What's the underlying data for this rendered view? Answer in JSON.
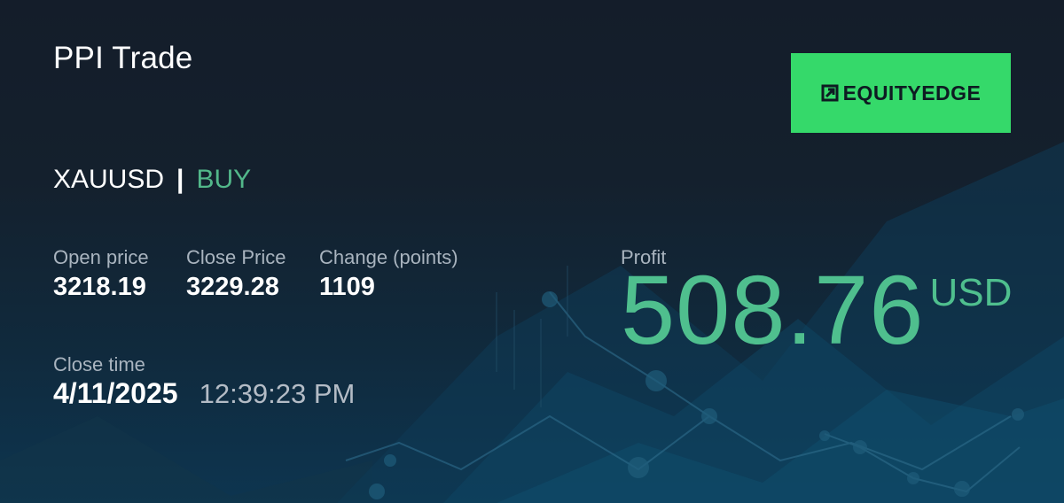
{
  "title": "PPI Trade",
  "logo": {
    "text": "EQUITYEDGE",
    "icon": "arrow-box-icon",
    "bg_color": "#35d96a"
  },
  "symbol": "XAUUSD",
  "separator": "|",
  "side": "BUY",
  "stats": {
    "open_price": {
      "label": "Open price",
      "value": "3218.19"
    },
    "close_price": {
      "label": "Close Price",
      "value": "3229.28"
    },
    "change": {
      "label": "Change (points)",
      "value": "1109"
    },
    "close_time": {
      "label": "Close time",
      "date": "4/11/2025",
      "time": "12:39:23 PM"
    }
  },
  "profit": {
    "label": "Profit",
    "amount": "508.76",
    "currency": "USD",
    "color": "#4fbf8e"
  }
}
